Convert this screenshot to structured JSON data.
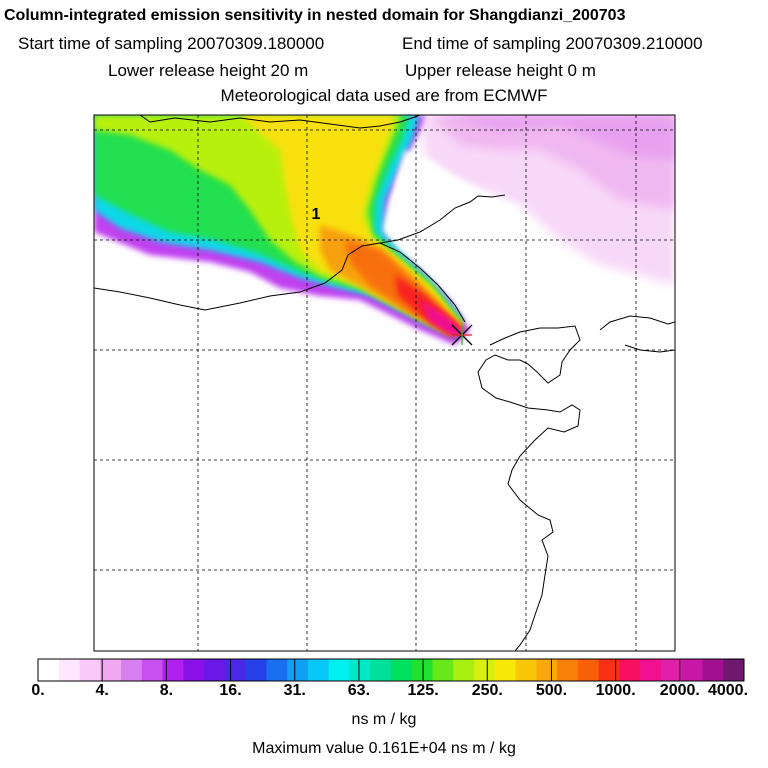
{
  "title": "Column-integrated emission sensitivity in nested domain for Shangdianzi_200703",
  "sampling": {
    "start": "Start time of sampling 20070309.180000",
    "end": "End time of sampling 20070309.210000"
  },
  "release": {
    "lower": "Lower release height   20 m",
    "upper": "Upper release height    0 m"
  },
  "met": "Meteorological data used are from ECMWF",
  "map": {
    "label": "1",
    "receptor_marker": "star-cross"
  },
  "colorbar": {
    "colors": [
      "#ffffff",
      "#ffe8ff",
      "#f8c8f8",
      "#f0a8f0",
      "#d880f0",
      "#c850f0",
      "#b020f0",
      "#8a10e8",
      "#6a18e8",
      "#4a28e8",
      "#2840e8",
      "#1870f0",
      "#10a0f8",
      "#08c8f8",
      "#00f0f0",
      "#00e8c8",
      "#00e098",
      "#00e060",
      "#20e030",
      "#68e818",
      "#a8f010",
      "#d8f010",
      "#f8e808",
      "#f8c808",
      "#f8a808",
      "#f88008",
      "#f86008",
      "#f83018",
      "#f81060",
      "#f01090",
      "#e020a8",
      "#c818a8",
      "#a01090",
      "#701870"
    ],
    "tick_labels": [
      "0.",
      "4.",
      "8.",
      "16.",
      "31.",
      "63.",
      "125.",
      "250.",
      "500.",
      "1000.",
      "2000.",
      "4000."
    ],
    "unit": "ns m / kg",
    "max_value": "Maximum value  0.161E+04 ns m / kg"
  }
}
